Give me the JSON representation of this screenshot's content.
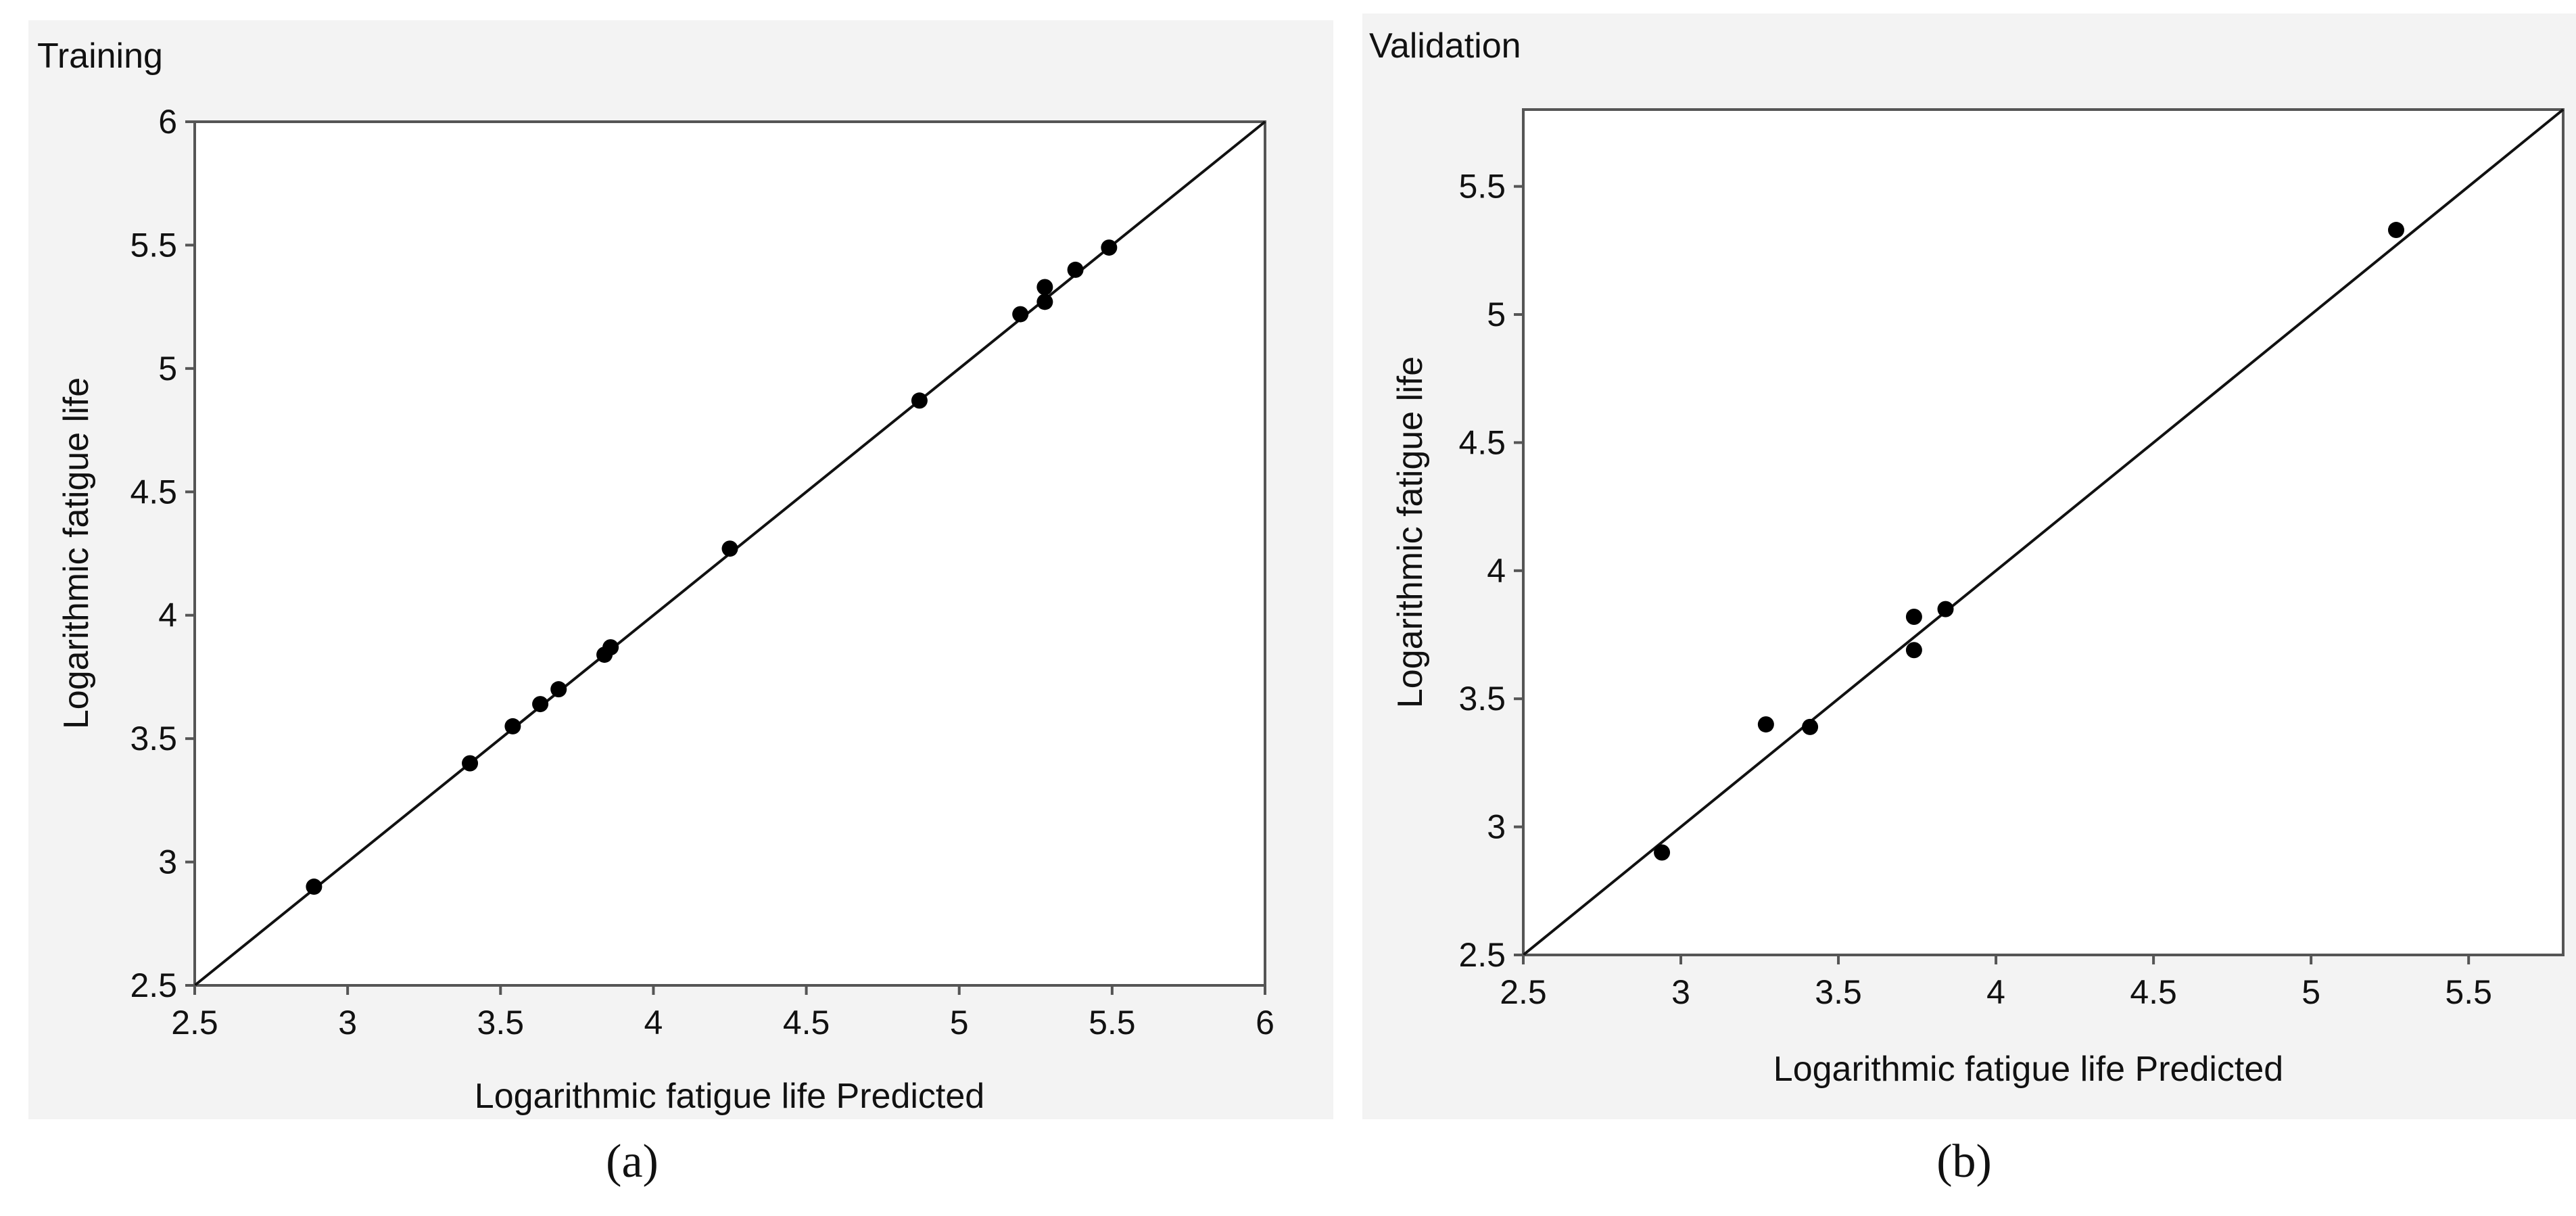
{
  "chart_data": [
    {
      "type": "scatter",
      "title": "Training",
      "xlabel": "Logarithmic fatigue life Predicted",
      "ylabel": "Logarithmic fatigue life",
      "xlim": [
        2.5,
        6
      ],
      "ylim": [
        2.5,
        6
      ],
      "xticks": [
        2.5,
        3,
        3.5,
        4,
        4.5,
        5,
        5.5,
        6
      ],
      "yticks": [
        2.5,
        3,
        3.5,
        4,
        4.5,
        5,
        5.5,
        6
      ],
      "reference_line": "y = x",
      "grid": false,
      "caption": "(a)",
      "points": [
        {
          "x": 2.89,
          "y": 2.9
        },
        {
          "x": 3.4,
          "y": 3.4
        },
        {
          "x": 3.54,
          "y": 3.55
        },
        {
          "x": 3.63,
          "y": 3.64
        },
        {
          "x": 3.69,
          "y": 3.7
        },
        {
          "x": 3.84,
          "y": 3.84
        },
        {
          "x": 3.86,
          "y": 3.87
        },
        {
          "x": 4.25,
          "y": 4.27
        },
        {
          "x": 4.87,
          "y": 4.87
        },
        {
          "x": 5.2,
          "y": 5.22
        },
        {
          "x": 5.28,
          "y": 5.27
        },
        {
          "x": 5.28,
          "y": 5.33
        },
        {
          "x": 5.38,
          "y": 5.4
        },
        {
          "x": 5.49,
          "y": 5.49
        }
      ]
    },
    {
      "type": "scatter",
      "title": "Validation",
      "xlabel": "Logarithmic fatigue life Predicted",
      "ylabel": "Logarithmic fatigue life",
      "xlim": [
        2.5,
        5.8
      ],
      "ylim": [
        2.5,
        5.8
      ],
      "xticks": [
        2.5,
        3,
        3.5,
        4,
        4.5,
        5,
        5.5
      ],
      "yticks": [
        2.5,
        3,
        3.5,
        4,
        4.5,
        5,
        5.5
      ],
      "reference_line": "y = x",
      "grid": false,
      "caption": "(b)",
      "points": [
        {
          "x": 2.94,
          "y": 2.9
        },
        {
          "x": 3.27,
          "y": 3.4
        },
        {
          "x": 3.41,
          "y": 3.39
        },
        {
          "x": 3.74,
          "y": 3.82
        },
        {
          "x": 3.74,
          "y": 3.69
        },
        {
          "x": 3.84,
          "y": 3.85
        },
        {
          "x": 5.27,
          "y": 5.33
        }
      ]
    }
  ]
}
